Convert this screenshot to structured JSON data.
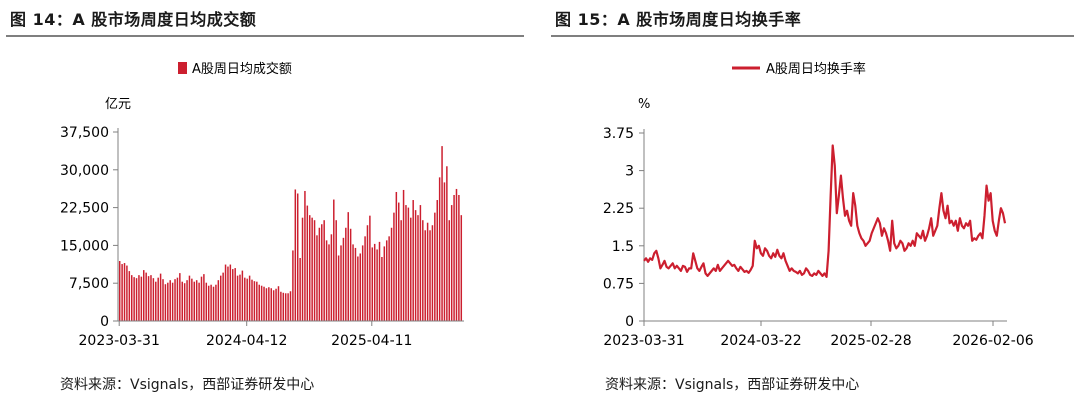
{
  "left": {
    "title": "图 14：A 股市场周度日均成交额",
    "source": "资料来源：Vsignals，西部证券研发中心",
    "chart_data": {
      "type": "bar",
      "legend": "A股周日均成交额",
      "ylabel": "亿元",
      "ylim": [
        0,
        37500
      ],
      "yticks": [
        "0",
        "7,500",
        "15,000",
        "22,500",
        "30,000",
        "37,500"
      ],
      "xticks": [
        "2023-03-31",
        "2024-04-12",
        "2025-04-11"
      ],
      "xtick_index": [
        0,
        53,
        105
      ],
      "color": "#cc1f2f",
      "values": [
        11900,
        11300,
        11500,
        11000,
        9900,
        9100,
        8700,
        8500,
        9100,
        8800,
        10100,
        9600,
        8900,
        9100,
        8500,
        7800,
        8600,
        9400,
        8300,
        7300,
        7600,
        8100,
        7600,
        8300,
        8600,
        9500,
        7800,
        7500,
        8100,
        9000,
        8400,
        7800,
        8100,
        7600,
        8800,
        9300,
        7600,
        7000,
        7200,
        6800,
        7200,
        8100,
        9000,
        9600,
        11200,
        10800,
        11200,
        10300,
        10500,
        9000,
        9200,
        10000,
        8600,
        8400,
        9000,
        8200,
        7900,
        7800,
        7200,
        7000,
        6800,
        6500,
        6700,
        6500,
        6100,
        6400,
        6900,
        5800,
        5600,
        5500,
        5500,
        5900,
        14000,
        26100,
        25300,
        12500,
        20500,
        25800,
        22900,
        21000,
        20500,
        20000,
        17000,
        18500,
        19200,
        20000,
        16000,
        15200,
        17200,
        24100,
        20000,
        13000,
        15000,
        16500,
        18500,
        21600,
        18300,
        15200,
        14500,
        12800,
        13400,
        15000,
        16800,
        19000,
        20900,
        14600,
        15300,
        14200,
        15700,
        12700,
        14800,
        16000,
        16800,
        18500,
        21500,
        25600,
        23500,
        20000,
        26000,
        23000,
        22500,
        20500,
        24000,
        22000,
        21000,
        23000,
        20000,
        18000,
        19500,
        18000,
        19000,
        21500,
        24000,
        28500,
        34700,
        27500,
        30700,
        20000,
        23000,
        25000,
        26200,
        25000,
        21000
      ]
    }
  },
  "right": {
    "title": "图 15：A 股市场周度日均换手率",
    "source": "资料来源：Vsignals，西部证券研发中心",
    "chart_data": {
      "type": "line",
      "legend": "A股周日均换手率",
      "ylabel": "%",
      "ylim": [
        0,
        3.75
      ],
      "yticks": [
        "0",
        "0.75",
        "1.5",
        "2.25",
        "3",
        "3.75"
      ],
      "xticks": [
        "2023-03-31",
        "2024-03-22",
        "2025-02-28",
        "2026-02-06"
      ],
      "xtick_index": [
        0,
        51,
        100,
        149
      ],
      "color": "#cc1f2f",
      "values": [
        1.2,
        1.25,
        1.18,
        1.25,
        1.22,
        1.35,
        1.4,
        1.25,
        1.05,
        1.12,
        1.2,
        1.08,
        1.05,
        1.1,
        1.15,
        1.05,
        1.1,
        1.05,
        1.0,
        1.1,
        1.08,
        0.98,
        1.05,
        1.05,
        1.35,
        1.2,
        1.05,
        1.0,
        1.08,
        1.15,
        0.95,
        0.9,
        0.95,
        1.0,
        1.05,
        1.0,
        1.12,
        1.0,
        1.05,
        1.1,
        1.15,
        1.2,
        1.15,
        1.1,
        1.12,
        1.05,
        1.0,
        1.08,
        1.03,
        0.98,
        1.0,
        0.96,
        1.02,
        1.1,
        1.6,
        1.45,
        1.5,
        1.35,
        1.3,
        1.45,
        1.4,
        1.3,
        1.25,
        1.35,
        1.28,
        1.42,
        1.3,
        1.25,
        1.35,
        1.2,
        1.1,
        1.0,
        1.05,
        1.0,
        0.98,
        0.95,
        1.0,
        0.92,
        0.95,
        1.05,
        1.0,
        0.92,
        0.9,
        0.95,
        0.92,
        1.0,
        0.95,
        0.9,
        0.95,
        0.88,
        1.4,
        2.5,
        3.5,
        3.1,
        2.15,
        2.5,
        2.9,
        2.45,
        2.1,
        2.2,
        2.0,
        1.9,
        2.55,
        2.3,
        1.9,
        1.75,
        1.65,
        1.6,
        1.5,
        1.55,
        1.6,
        1.75,
        1.85,
        1.95,
        2.05,
        1.95,
        1.7,
        1.85,
        1.75,
        1.6,
        1.4,
        2.0,
        1.55,
        1.45,
        1.5,
        1.6,
        1.55,
        1.4,
        1.45,
        1.55,
        1.5,
        1.6,
        1.5,
        1.75,
        1.7,
        1.65,
        1.8,
        1.6,
        1.7,
        1.85,
        2.05,
        1.7,
        1.8,
        1.9,
        2.25,
        2.55,
        2.2,
        2.05,
        2.3,
        1.95,
        2.0,
        1.9,
        2.0,
        1.8,
        2.05,
        1.9,
        1.85,
        1.95,
        1.9,
        2.0,
        1.6,
        1.65,
        1.62,
        1.7,
        1.75,
        1.65,
        2.1,
        2.7,
        2.4,
        2.55,
        2.0,
        1.8,
        1.7,
        2.0,
        2.25,
        2.15,
        1.95
      ]
    }
  }
}
